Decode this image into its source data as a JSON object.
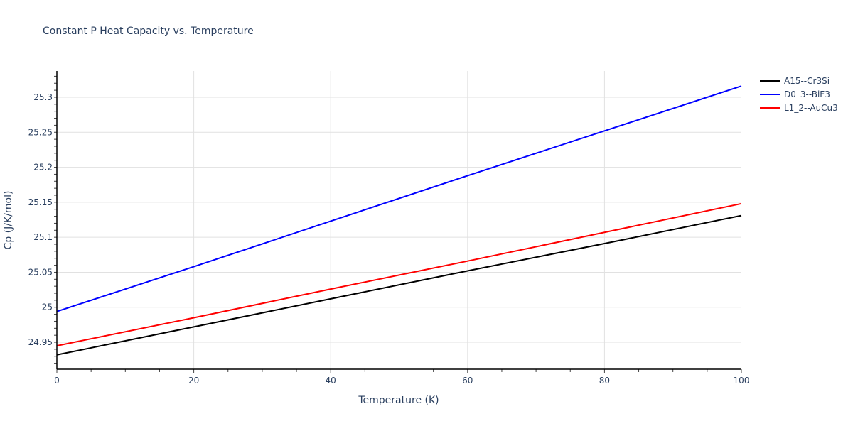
{
  "chart_data": {
    "type": "line",
    "title": "Constant P Heat Capacity vs. Temperature",
    "xlabel": "Temperature (K)",
    "ylabel": "Cp (J/K/mol)",
    "xlim": [
      0,
      100
    ],
    "ylim": [
      24.9115,
      25.3375
    ],
    "x_ticks": [
      "0",
      "20",
      "40",
      "60",
      "80",
      "100"
    ],
    "y_ticks": [
      "24.95",
      "25",
      "25.05",
      "25.1",
      "25.15",
      "25.2",
      "25.25",
      "25.3"
    ],
    "grid": true,
    "legend_position": "right",
    "x": [
      0,
      20,
      40,
      60,
      80,
      100
    ],
    "series": [
      {
        "name": "A15--Cr3Si",
        "color": "#000000",
        "values": [
          24.932,
          24.972,
          25.012,
          25.052,
          25.091,
          25.131
        ]
      },
      {
        "name": "D0_3--BiF3",
        "color": "#0000ff",
        "values": [
          24.994,
          25.058,
          25.123,
          25.188,
          25.252,
          25.316
        ]
      },
      {
        "name": "L1_2--AuCu3",
        "color": "#ff0000",
        "values": [
          24.945,
          24.985,
          25.026,
          25.066,
          25.107,
          25.148
        ]
      }
    ]
  }
}
